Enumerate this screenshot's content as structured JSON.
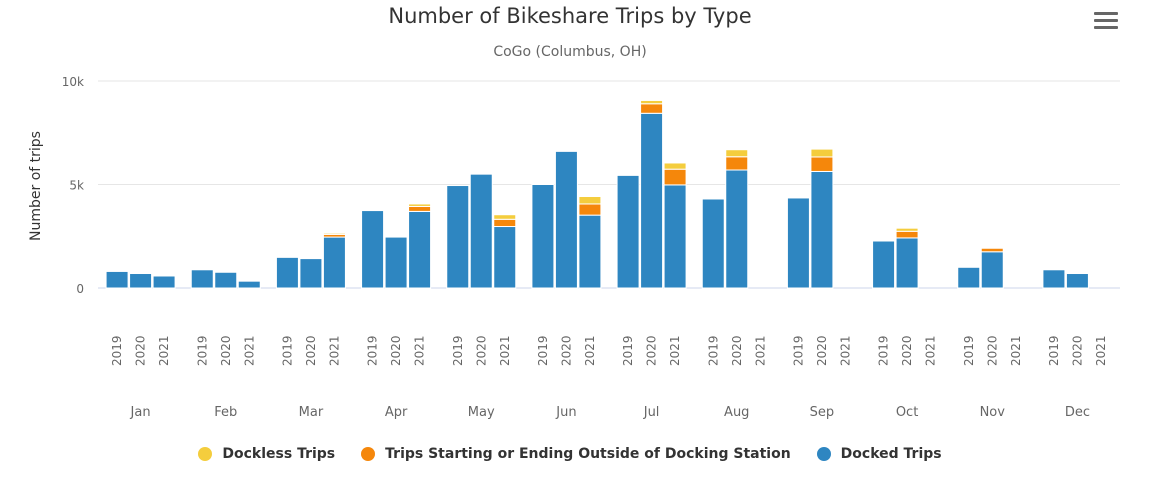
{
  "header": {
    "menu_icon": "hamburger-menu-icon"
  },
  "colors": {
    "docked": "#2e86c1",
    "outside": "#f5870b",
    "dockless": "#f4cd3d"
  },
  "chart_data": {
    "type": "bar",
    "stacked": true,
    "title": "Number of Bikeshare Trips by Type",
    "subtitle": "CoGo (Columbus, OH)",
    "xlabel": "",
    "ylabel": "Number of trips",
    "ylim": [
      0,
      10000
    ],
    "yticks": [
      0,
      5000,
      10000
    ],
    "ytick_labels": [
      "0",
      "5k",
      "10k"
    ],
    "grid": true,
    "legend_position": "bottom",
    "months": [
      "Jan",
      "Feb",
      "Mar",
      "Apr",
      "May",
      "Jun",
      "Jul",
      "Aug",
      "Sep",
      "Oct",
      "Nov",
      "Dec"
    ],
    "years": [
      "2019",
      "2020",
      "2021"
    ],
    "series": [
      {
        "name": "Docked Trips",
        "values": [
          [
            800,
            700,
            580
          ],
          [
            880,
            760,
            330
          ],
          [
            1480,
            1420,
            2460
          ],
          [
            3740,
            2460,
            3700
          ],
          [
            4950,
            5500,
            2970
          ],
          [
            5000,
            6600,
            3520
          ],
          [
            5440,
            8440,
            4980
          ],
          [
            4300,
            5700,
            null
          ],
          [
            4350,
            5630,
            null
          ],
          [
            2270,
            2420,
            null
          ],
          [
            1000,
            1750,
            null
          ],
          [
            880,
            700,
            null
          ]
        ]
      },
      {
        "name": "Trips Starting or Ending Outside of Docking Station",
        "values": [
          [
            0,
            0,
            0
          ],
          [
            0,
            0,
            0
          ],
          [
            0,
            0,
            130
          ],
          [
            0,
            0,
            240
          ],
          [
            0,
            0,
            350
          ],
          [
            0,
            0,
            540
          ],
          [
            0,
            460,
            760
          ],
          [
            0,
            640,
            null
          ],
          [
            0,
            700,
            null
          ],
          [
            0,
            320,
            null
          ],
          [
            0,
            170,
            null
          ],
          [
            0,
            0,
            null
          ]
        ]
      },
      {
        "name": "Dockless Trips",
        "values": [
          [
            0,
            0,
            0
          ],
          [
            0,
            0,
            0
          ],
          [
            0,
            0,
            60
          ],
          [
            0,
            0,
            120
          ],
          [
            0,
            0,
            220
          ],
          [
            0,
            0,
            360
          ],
          [
            0,
            160,
            300
          ],
          [
            0,
            340,
            null
          ],
          [
            0,
            380,
            null
          ],
          [
            0,
            150,
            null
          ],
          [
            0,
            0,
            null
          ],
          [
            0,
            0,
            null
          ]
        ]
      }
    ],
    "legend_order": [
      "Dockless Trips",
      "Trips Starting or Ending Outside of Docking Station",
      "Docked Trips"
    ]
  }
}
